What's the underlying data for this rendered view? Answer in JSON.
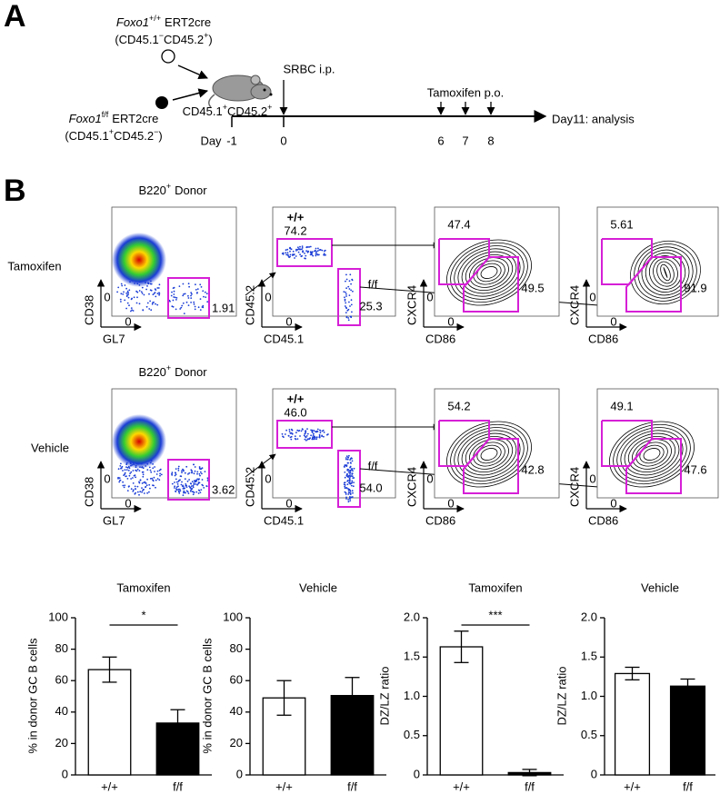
{
  "panel_a": {
    "label": "A",
    "donor_wt": {
      "genotype_line": [
        "Foxo1",
        "+/+",
        "ERT2cre"
      ],
      "marker_line": [
        "(CD45.1",
        "−",
        "CD45.2",
        "+",
        ")"
      ]
    },
    "donor_ff": {
      "genotype_line": [
        "Foxo1",
        "f/f",
        "ERT2cre"
      ],
      "marker_line": [
        "(CD45.1",
        "+",
        "CD45.2",
        "−",
        ")"
      ]
    },
    "recipient": [
      "CD45.1",
      "+",
      "CD45.2",
      "+"
    ],
    "immunization": "SRBC i.p.",
    "treatment": "Tamoxifen p.o.",
    "day_label": "Day",
    "days": [
      "-1",
      "0",
      "6",
      "7",
      "8"
    ],
    "endpoint": "Day11: analysis"
  },
  "panel_b": {
    "label": "B",
    "zero": "0",
    "axes": {
      "gl7": "GL7",
      "cd38": "CD38",
      "cd45_1": "CD45.1",
      "cd45_2": "CD45.2",
      "cd86": "CD86",
      "cxcr4": "CXCR4"
    },
    "rows": [
      {
        "name": "Tamoxifen",
        "gate_title": [
          "B220",
          "+",
          "Donor"
        ],
        "gc_gate": "1.91",
        "wt_label": "+/+",
        "wt_pct": "74.2",
        "ff_label": "f/f",
        "ff_pct": "25.3",
        "wt_dz": "47.4",
        "wt_lz": "49.5",
        "ff_dz": "5.61",
        "ff_lz": "91.9"
      },
      {
        "name": "Vehicle",
        "gate_title": [
          "B220",
          "+",
          "Donor"
        ],
        "gc_gate": "3.62",
        "wt_label": "+/+",
        "wt_pct": "46.0",
        "ff_label": "f/f",
        "ff_pct": "54.0",
        "wt_dz": "54.2",
        "wt_lz": "42.8",
        "ff_dz": "49.1",
        "ff_lz": "47.6"
      }
    ]
  },
  "chart_data": [
    {
      "type": "bar",
      "title": "Tamoxifen",
      "ylabel": "% in donor GC B cells",
      "categories": [
        "+/+",
        "f/f"
      ],
      "values": [
        67,
        33
      ],
      "errors": [
        8,
        8.5
      ],
      "colors": [
        "#ffffff",
        "#000000"
      ],
      "ylim": [
        0,
        100
      ],
      "yticks": [
        0,
        20,
        40,
        60,
        80,
        100
      ],
      "annotation": "*"
    },
    {
      "type": "bar",
      "title": "Vehicle",
      "ylabel": "% in donor GC B cells",
      "categories": [
        "+/+",
        "f/f"
      ],
      "values": [
        49,
        50.5
      ],
      "errors": [
        11,
        11.5
      ],
      "colors": [
        "#ffffff",
        "#000000"
      ],
      "ylim": [
        0,
        100
      ],
      "yticks": [
        0,
        20,
        40,
        60,
        80,
        100
      ]
    },
    {
      "type": "bar",
      "title": "Tamoxifen",
      "ylabel": "DZ/LZ ratio",
      "categories": [
        "+/+",
        "f/f"
      ],
      "values": [
        1.63,
        0.03
      ],
      "errors": [
        0.2,
        0.04
      ],
      "colors": [
        "#ffffff",
        "#000000"
      ],
      "ylim": [
        0,
        2
      ],
      "yticks": [
        0,
        0.5,
        {
          "value": 1,
          "label": "1.0"
        },
        1.5,
        {
          "value": 2,
          "label": "2.0"
        }
      ],
      "annotation": "***"
    },
    {
      "type": "bar",
      "title": "Vehicle",
      "ylabel": "DZ/LZ ratio",
      "categories": [
        "+/+",
        "f/f"
      ],
      "values": [
        1.29,
        1.13
      ],
      "errors": [
        0.08,
        0.09
      ],
      "colors": [
        "#ffffff",
        "#000000"
      ],
      "ylim": [
        0,
        2
      ],
      "yticks": [
        0,
        0.5,
        {
          "value": 1,
          "label": "1.0"
        },
        1.5,
        {
          "value": 2,
          "label": "2.0"
        }
      ]
    }
  ]
}
